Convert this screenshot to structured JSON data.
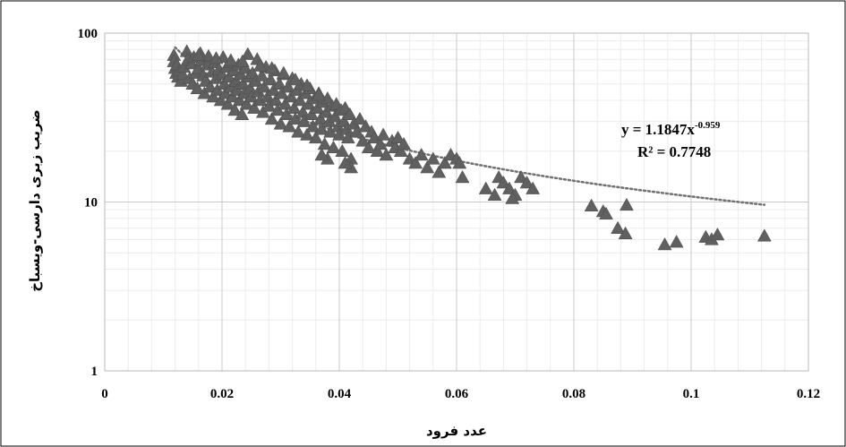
{
  "chart_data": {
    "type": "scatter",
    "xlabel": "عدد فرود",
    "ylabel": "ضریب زبری دارسی-ویسباخ",
    "xlim": [
      0,
      0.12
    ],
    "ylim": [
      1,
      100
    ],
    "yscale": "log",
    "x_ticks": [
      "0",
      "0.02",
      "0.04",
      "0.06",
      "0.08",
      "0.1",
      "0.12"
    ],
    "y_ticks": [
      "1",
      "10",
      "100"
    ],
    "grid": true,
    "marker": "triangle",
    "marker_color": "#606060",
    "trendline": {
      "type": "power",
      "coefficient": 1.1847,
      "exponent": -0.959,
      "x_range": [
        0.012,
        0.1125
      ],
      "equation_prefix": "y = 1.1847x",
      "equation_exponent": "-0.959",
      "r_squared_label": "R² = 0.7748",
      "color": "#707070"
    },
    "points": [
      [
        0.0118,
        74
      ],
      [
        0.0118,
        68
      ],
      [
        0.012,
        62
      ],
      [
        0.0122,
        58
      ],
      [
        0.0123,
        65
      ],
      [
        0.0125,
        55
      ],
      [
        0.0128,
        60
      ],
      [
        0.013,
        52
      ],
      [
        0.0133,
        57
      ],
      [
        0.0135,
        63
      ],
      [
        0.014,
        78
      ],
      [
        0.0142,
        70
      ],
      [
        0.0145,
        54
      ],
      [
        0.0148,
        66
      ],
      [
        0.015,
        50
      ],
      [
        0.0152,
        72
      ],
      [
        0.0155,
        58
      ],
      [
        0.0158,
        47
      ],
      [
        0.016,
        62
      ],
      [
        0.0163,
        76
      ],
      [
        0.0165,
        69
      ],
      [
        0.0168,
        56
      ],
      [
        0.017,
        44
      ],
      [
        0.0172,
        52
      ],
      [
        0.0175,
        65
      ],
      [
        0.0177,
        73
      ],
      [
        0.018,
        48
      ],
      [
        0.0183,
        59
      ],
      [
        0.0185,
        42
      ],
      [
        0.0188,
        67
      ],
      [
        0.019,
        54
      ],
      [
        0.0192,
        46
      ],
      [
        0.0195,
        61
      ],
      [
        0.0198,
        40
      ],
      [
        0.02,
        57
      ],
      [
        0.0202,
        72
      ],
      [
        0.0204,
        50
      ],
      [
        0.0206,
        44
      ],
      [
        0.0208,
        63
      ],
      [
        0.021,
        38
      ],
      [
        0.0212,
        55
      ],
      [
        0.0214,
        67
      ],
      [
        0.0216,
        48
      ],
      [
        0.0218,
        42
      ],
      [
        0.022,
        60
      ],
      [
        0.0222,
        35
      ],
      [
        0.0224,
        52
      ],
      [
        0.0226,
        46
      ],
      [
        0.0228,
        65
      ],
      [
        0.023,
        40
      ],
      [
        0.0232,
        57
      ],
      [
        0.0234,
        33
      ],
      [
        0.0236,
        50
      ],
      [
        0.0238,
        44
      ],
      [
        0.024,
        62
      ],
      [
        0.0242,
        38
      ],
      [
        0.0244,
        75
      ],
      [
        0.0246,
        55
      ],
      [
        0.0248,
        47
      ],
      [
        0.025,
        42
      ],
      [
        0.0252,
        58
      ],
      [
        0.0255,
        36
      ],
      [
        0.0258,
        52
      ],
      [
        0.026,
        70
      ],
      [
        0.0262,
        45
      ],
      [
        0.0265,
        40
      ],
      [
        0.0268,
        56
      ],
      [
        0.027,
        34
      ],
      [
        0.0272,
        48
      ],
      [
        0.0275,
        63
      ],
      [
        0.0278,
        42
      ],
      [
        0.028,
        37
      ],
      [
        0.0283,
        53
      ],
      [
        0.0285,
        31
      ],
      [
        0.0288,
        46
      ],
      [
        0.029,
        60
      ],
      [
        0.0292,
        40
      ],
      [
        0.0295,
        35
      ],
      [
        0.0298,
        50
      ],
      [
        0.03,
        29
      ],
      [
        0.0302,
        44
      ],
      [
        0.0305,
        57
      ],
      [
        0.0308,
        38
      ],
      [
        0.031,
        33
      ],
      [
        0.0313,
        48
      ],
      [
        0.0315,
        28
      ],
      [
        0.0318,
        42
      ],
      [
        0.032,
        54
      ],
      [
        0.0323,
        36
      ],
      [
        0.0325,
        31
      ],
      [
        0.0328,
        46
      ],
      [
        0.033,
        26
      ],
      [
        0.0333,
        40
      ],
      [
        0.0335,
        50
      ],
      [
        0.0338,
        34
      ],
      [
        0.034,
        30
      ],
      [
        0.0343,
        44
      ],
      [
        0.0345,
        25
      ],
      [
        0.0348,
        38
      ],
      [
        0.035,
        47
      ],
      [
        0.0353,
        33
      ],
      [
        0.0355,
        28
      ],
      [
        0.0358,
        41
      ],
      [
        0.036,
        24
      ],
      [
        0.0363,
        36
      ],
      [
        0.0365,
        44
      ],
      [
        0.0368,
        31
      ],
      [
        0.037,
        27
      ],
      [
        0.0373,
        39
      ],
      [
        0.0375,
        22
      ],
      [
        0.0378,
        34
      ],
      [
        0.038,
        41
      ],
      [
        0.0383,
        30
      ],
      [
        0.0385,
        26
      ],
      [
        0.0388,
        37
      ],
      [
        0.039,
        21
      ],
      [
        0.0393,
        32
      ],
      [
        0.0395,
        38
      ],
      [
        0.0398,
        28
      ],
      [
        0.04,
        25
      ],
      [
        0.0403,
        35
      ],
      [
        0.0405,
        20
      ],
      [
        0.0408,
        30
      ],
      [
        0.041,
        36
      ],
      [
        0.0413,
        27
      ],
      [
        0.0415,
        24
      ],
      [
        0.0418,
        33
      ],
      [
        0.042,
        18
      ],
      [
        0.0425,
        29
      ],
      [
        0.043,
        26
      ],
      [
        0.0435,
        31
      ],
      [
        0.044,
        23
      ],
      [
        0.0445,
        28
      ],
      [
        0.045,
        21
      ],
      [
        0.0455,
        26
      ],
      [
        0.046,
        24
      ],
      [
        0.0465,
        20
      ],
      [
        0.047,
        22
      ],
      [
        0.0475,
        25
      ],
      [
        0.048,
        19
      ],
      [
        0.049,
        23
      ],
      [
        0.0495,
        21
      ],
      [
        0.05,
        24
      ],
      [
        0.0505,
        20
      ],
      [
        0.051,
        22
      ],
      [
        0.052,
        18
      ],
      [
        0.053,
        17
      ],
      [
        0.054,
        19
      ],
      [
        0.055,
        16
      ],
      [
        0.056,
        18
      ],
      [
        0.057,
        15
      ],
      [
        0.058,
        17
      ],
      [
        0.059,
        19
      ],
      [
        0.06,
        18
      ],
      [
        0.0605,
        17
      ],
      [
        0.061,
        14
      ],
      [
        0.042,
        16
      ],
      [
        0.041,
        17
      ],
      [
        0.038,
        18
      ],
      [
        0.037,
        19
      ],
      [
        0.065,
        12
      ],
      [
        0.0665,
        11
      ],
      [
        0.0672,
        14
      ],
      [
        0.068,
        13
      ],
      [
        0.069,
        12
      ],
      [
        0.07,
        11
      ],
      [
        0.071,
        14
      ],
      [
        0.072,
        13
      ],
      [
        0.073,
        12
      ],
      [
        0.0695,
        10.5
      ],
      [
        0.083,
        9.5
      ],
      [
        0.085,
        8.8
      ],
      [
        0.0855,
        8.5
      ],
      [
        0.0875,
        7.0
      ],
      [
        0.0888,
        6.5
      ],
      [
        0.089,
        9.6
      ],
      [
        0.0955,
        5.6
      ],
      [
        0.0975,
        5.8
      ],
      [
        0.1025,
        6.2
      ],
      [
        0.1035,
        6.0
      ],
      [
        0.1045,
        6.4
      ],
      [
        0.1125,
        6.3
      ],
      [
        0.016,
        74
      ],
      [
        0.019,
        71
      ],
      [
        0.0215,
        69
      ],
      [
        0.0235,
        68
      ],
      [
        0.0265,
        64
      ],
      [
        0.0285,
        62
      ],
      [
        0.0305,
        58
      ],
      [
        0.0325,
        53
      ],
      [
        0.0345,
        49
      ],
      [
        0.0365,
        43
      ]
    ]
  }
}
